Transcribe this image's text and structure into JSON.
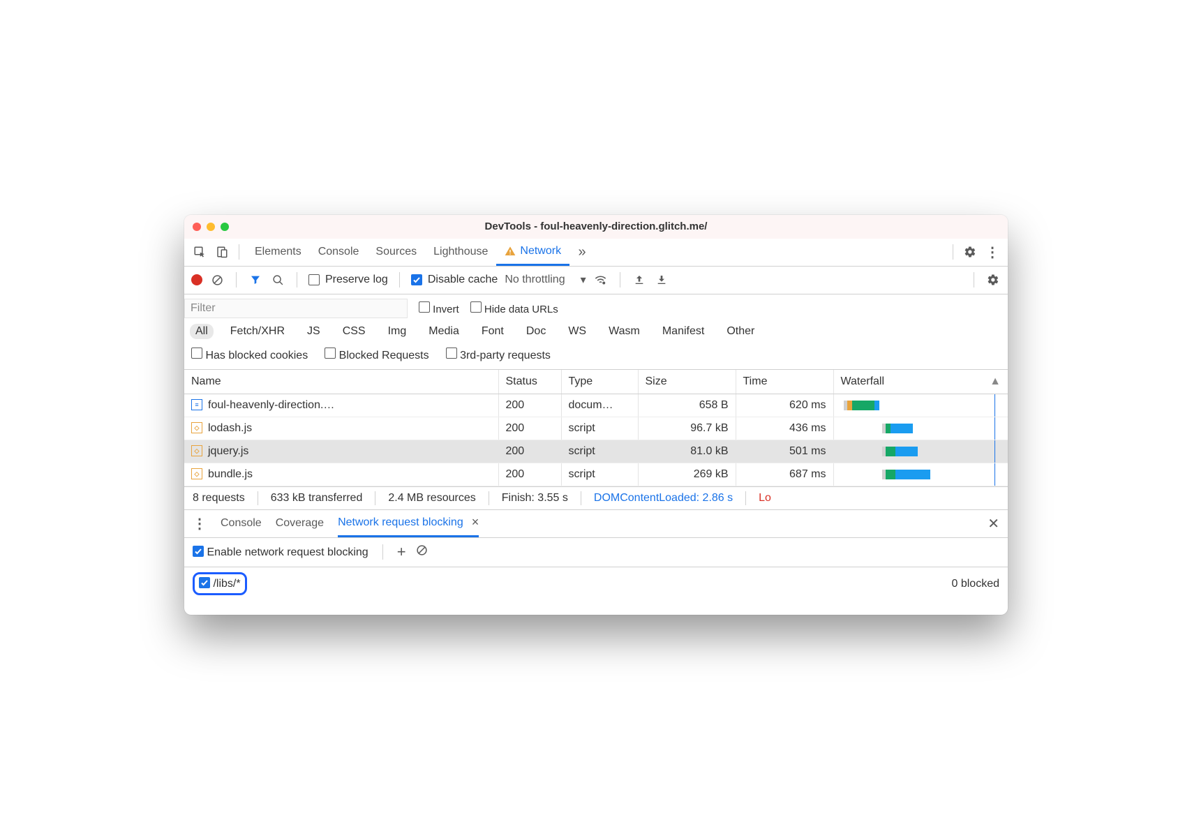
{
  "window": {
    "title": "DevTools - foul-heavenly-direction.glitch.me/"
  },
  "tabs": {
    "items": [
      "Elements",
      "Console",
      "Sources",
      "Lighthouse",
      "Network"
    ],
    "active": "Network",
    "has_warning_on_active": true
  },
  "toolbar": {
    "preserve_log_label": "Preserve log",
    "preserve_log_checked": false,
    "disable_cache_label": "Disable cache",
    "disable_cache_checked": true,
    "throttling_label": "No throttling"
  },
  "filterbar": {
    "placeholder": "Filter",
    "invert_label": "Invert",
    "invert_checked": false,
    "hide_data_label": "Hide data URLs",
    "hide_data_checked": false
  },
  "types": [
    "All",
    "Fetch/XHR",
    "JS",
    "CSS",
    "Img",
    "Media",
    "Font",
    "Doc",
    "WS",
    "Wasm",
    "Manifest",
    "Other"
  ],
  "types_active": "All",
  "extra_filters": {
    "blocked_cookies_label": "Has blocked cookies",
    "blocked_requests_label": "Blocked Requests",
    "third_party_label": "3rd-party requests"
  },
  "table": {
    "columns": [
      "Name",
      "Status",
      "Type",
      "Size",
      "Time",
      "Waterfall"
    ],
    "rows": [
      {
        "icon": "doc",
        "name": "foul-heavenly-direction.…",
        "status": "200",
        "type": "docum…",
        "size": "658 B",
        "time": "620 ms",
        "wf": {
          "start": 2,
          "segs": [
            [
              "#d0d0d0",
              2
            ],
            [
              "#e8a33d",
              3
            ],
            [
              "#16a766",
              14
            ],
            [
              "#1a9cf0",
              3
            ]
          ]
        }
      },
      {
        "icon": "js",
        "name": "lodash.js",
        "status": "200",
        "type": "script",
        "size": "96.7 kB",
        "time": "436 ms",
        "wf": {
          "start": 26,
          "segs": [
            [
              "#d0d0d0",
              2
            ],
            [
              "#16a766",
              3
            ],
            [
              "#1a9cf0",
              14
            ]
          ]
        }
      },
      {
        "icon": "js",
        "name": "jquery.js",
        "status": "200",
        "type": "script",
        "size": "81.0 kB",
        "time": "501 ms",
        "wf": {
          "start": 26,
          "segs": [
            [
              "#d0d0d0",
              2
            ],
            [
              "#16a766",
              6
            ],
            [
              "#1a9cf0",
              14
            ]
          ]
        },
        "selected": true
      },
      {
        "icon": "js",
        "name": "bundle.js",
        "status": "200",
        "type": "script",
        "size": "269 kB",
        "time": "687 ms",
        "wf": {
          "start": 26,
          "segs": [
            [
              "#d0d0d0",
              2
            ],
            [
              "#16a766",
              6
            ],
            [
              "#1a9cf0",
              22
            ]
          ]
        }
      }
    ],
    "waterfall_colors": {
      "wait": "#d0d0d0",
      "ttfb": "#e8a33d",
      "receive": "#16a766",
      "queue": "#1a9cf0"
    }
  },
  "statusbar": {
    "requests": "8 requests",
    "transferred": "633 kB transferred",
    "resources": "2.4 MB resources",
    "finish": "Finish: 3.55 s",
    "dcl": "DOMContentLoaded: 2.86 s",
    "load_truncated": "Lo"
  },
  "drawer": {
    "tabs": [
      "Console",
      "Coverage",
      "Network request blocking"
    ],
    "active": "Network request blocking",
    "enable_label": "Enable network request blocking",
    "enable_checked": true,
    "pattern": "/libs/*",
    "pattern_checked": true,
    "blocked_count_label": "0 blocked"
  },
  "colors": {
    "accent": "#1a73e8",
    "border": "#d0d0d0",
    "text": "#333333",
    "muted": "#5a5a5a",
    "danger": "#d93025",
    "highlight_ring": "#1b5cff"
  }
}
